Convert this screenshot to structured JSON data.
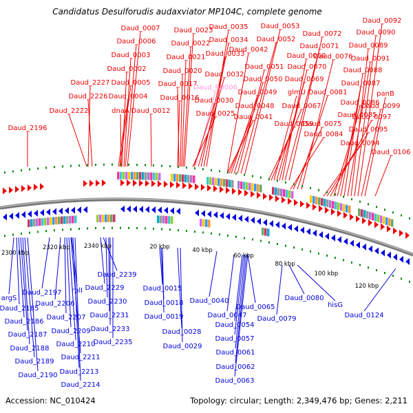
{
  "title": "Candidatus Desulforudis audaxviator MP104C, complete genome",
  "footer": {
    "accession": "Accession: NC_010424",
    "topology": "Topology: circular; Length: 2,349,476 bp; Genes: 2,211"
  },
  "colors": {
    "forward": "#ee0000",
    "reverse": "#0000dd",
    "rna": "#ff99dd",
    "backbone": "#888888",
    "ticks": "#008800"
  },
  "ticks": [
    "2300 kbp",
    "2320 kbp",
    "2340 kbp",
    "20 kbp",
    "40 kbp",
    "60 kbp",
    "80 kbp",
    "100 kbp",
    "120 kbp"
  ],
  "forward_labels": [
    "Daud_0007",
    "Daud_0006",
    "Daud_0003",
    "Daud_0002",
    "Daud_2227",
    "Daud_0005",
    "Daud_2226",
    "Daud_0004",
    "Daud_2222",
    "dnaA",
    "Daud_0012",
    "Daud_2196",
    "Daud_0023",
    "Daud_0022",
    "Daud_0021",
    "Daud_0020",
    "Daud_0017",
    "Daud_0016",
    "Daud_0035",
    "Daud_0034",
    "Daud_0033",
    "Daud_0032",
    "Daud_R0006",
    "Daud_0030",
    "Daud_0025",
    "Daud_0042",
    "Daud_0053",
    "Daud_0052",
    "Daud_0051",
    "Daud_0050",
    "Daud_0049",
    "Daud_0048",
    "Daud_0041",
    "Daud_0072",
    "Daud_0071",
    "Daud_0060",
    "Daud_0070",
    "Daud_0069",
    "glmU",
    "Daud_0067",
    "Daud_0059",
    "Daud_0076",
    "Daud_0081",
    "Daud_0075",
    "Daud_0084",
    "Daud_0092",
    "Daud_0090",
    "Daud_0089",
    "Daud_0091",
    "Daud_0088",
    "Daud_0087",
    "Daud_0086",
    "Daud_0085",
    "Daud_0097",
    "Daud_0095",
    "Daud_0094",
    "panB",
    "Daud_0099",
    "Daud_0106"
  ],
  "reverse_labels": [
    "argS",
    "Daud_2185",
    "Daud_2186",
    "Daud_2187",
    "Daud_2188",
    "Daud_2189",
    "Daud_2190",
    "Daud_2197",
    "Daud_2206",
    "rplI",
    "Daud_2207",
    "Daud_2209",
    "Daud_2210",
    "Daud_2211",
    "Daud_2213",
    "Daud_2214",
    "Daud_2229",
    "Daud_2239",
    "Daud_2230",
    "Daud_2231",
    "Daud_2233",
    "Daud_2235",
    "Daud_0015",
    "Daud_0018",
    "Daud_0019",
    "Daud_0028",
    "Daud_0029",
    "Daud_0040",
    "Daud_0047",
    "Daud_0065",
    "Daud_0054",
    "Daud_0057",
    "Daud_0061",
    "Daud_0062",
    "Daud_0063",
    "Daud_0080",
    "Daud_0079",
    "hisG",
    "Daud_0124"
  ]
}
